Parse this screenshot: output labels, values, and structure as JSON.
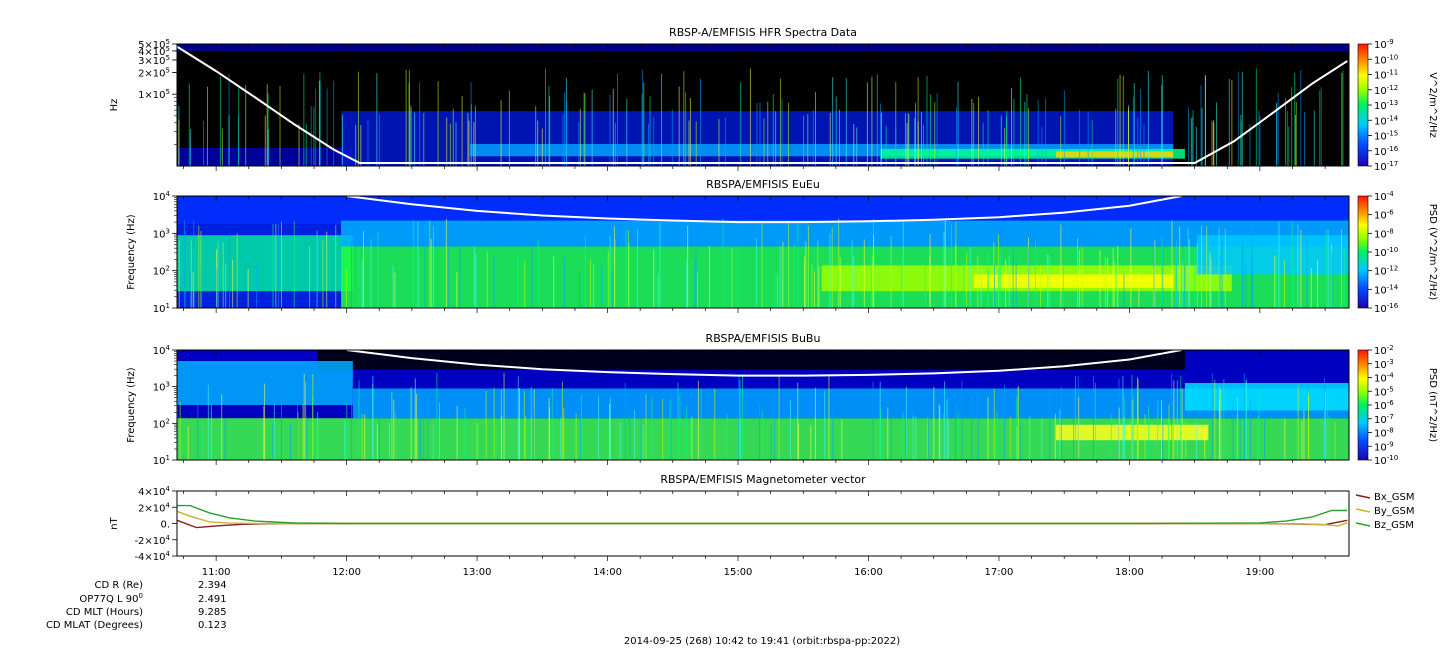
{
  "chart_data": [
    {
      "type": "heatmap",
      "title": "RBSP-A/EMFISIS  HFR Spectra Data",
      "ylabel": "Hz",
      "yscale": "log",
      "ylim": [
        10000,
        500000
      ],
      "y_ticks": [
        {
          "v": 100000,
          "m": "1×10",
          "e": "5"
        },
        {
          "v": 200000,
          "m": "2×10",
          "e": "5"
        },
        {
          "v": 300000,
          "m": "3×10",
          "e": "5"
        },
        {
          "v": 400000,
          "m": "4×10",
          "e": "5"
        },
        {
          "v": 500000,
          "m": "5×10",
          "e": "5"
        }
      ],
      "colorbar": {
        "label": "V^2/m^2/Hz",
        "scale": "log",
        "range": [
          1e-17,
          1e-09
        ],
        "ticks": [
          {
            "m": "10",
            "e": "-9"
          },
          {
            "m": "10",
            "e": "-10"
          },
          {
            "m": "10",
            "e": "-11"
          },
          {
            "m": "10",
            "e": "-12"
          },
          {
            "m": "10",
            "e": "-13"
          },
          {
            "m": "10",
            "e": "-14"
          },
          {
            "m": "10",
            "e": "-15"
          },
          {
            "m": "10",
            "e": "-16"
          },
          {
            "m": "10",
            "e": "-17"
          }
        ]
      },
      "overlay_curve": {
        "color": "#ffffff",
        "x_hours": [
          10.7,
          11.0,
          11.3,
          11.6,
          11.9,
          12.1,
          18.5,
          18.8,
          19.1,
          19.4,
          19.67
        ],
        "y": [
          460000,
          210000,
          90000,
          38000,
          17000,
          11000,
          11000,
          22000,
          55000,
          140000,
          290000
        ]
      }
    },
    {
      "type": "heatmap",
      "title": "RBSPA/EMFISIS  EuEu",
      "ylabel": "Frequency (Hz)",
      "yscale": "log",
      "ylim": [
        10,
        10000
      ],
      "y_ticks": [
        {
          "v": 10,
          "m": "10",
          "e": "1"
        },
        {
          "v": 100,
          "m": "10",
          "e": "2"
        },
        {
          "v": 1000,
          "m": "10",
          "e": "3"
        },
        {
          "v": 10000,
          "m": "10",
          "e": "4"
        }
      ],
      "colorbar": {
        "label": "PSD (V^2/m^2/Hz)",
        "scale": "log",
        "range": [
          1e-16,
          0.0001
        ],
        "ticks": [
          {
            "m": "10",
            "e": "-4"
          },
          {
            "m": "10",
            "e": "-6"
          },
          {
            "m": "10",
            "e": "-8"
          },
          {
            "m": "10",
            "e": "-10"
          },
          {
            "m": "10",
            "e": "-12"
          },
          {
            "m": "10",
            "e": "-14"
          },
          {
            "m": "10",
            "e": "-16"
          }
        ]
      },
      "overlay_curve": {
        "color": "#ffffff",
        "x_hours": [
          12.0,
          12.5,
          13.0,
          13.5,
          14.0,
          14.5,
          15.0,
          15.5,
          16.0,
          16.5,
          17.0,
          17.5,
          18.0,
          18.4
        ],
        "y": [
          10000,
          6000,
          4000,
          3000,
          2500,
          2200,
          2000,
          2000,
          2100,
          2300,
          2700,
          3600,
          5500,
          10000
        ]
      }
    },
    {
      "type": "heatmap",
      "title": "RBSPA/EMFISIS  BuBu",
      "ylabel": "Frequency (Hz)",
      "yscale": "log",
      "ylim": [
        10,
        10000
      ],
      "y_ticks": [
        {
          "v": 10,
          "m": "10",
          "e": "1"
        },
        {
          "v": 100,
          "m": "10",
          "e": "2"
        },
        {
          "v": 1000,
          "m": "10",
          "e": "3"
        },
        {
          "v": 10000,
          "m": "10",
          "e": "4"
        }
      ],
      "colorbar": {
        "label": "PSD (nT^2/Hz)",
        "scale": "log",
        "range": [
          1e-10,
          0.01
        ],
        "ticks": [
          {
            "m": "10",
            "e": "-2"
          },
          {
            "m": "10",
            "e": "-3"
          },
          {
            "m": "10",
            "e": "-4"
          },
          {
            "m": "10",
            "e": "-5"
          },
          {
            "m": "10",
            "e": "-6"
          },
          {
            "m": "10",
            "e": "-7"
          },
          {
            "m": "10",
            "e": "-8"
          },
          {
            "m": "10",
            "e": "-9"
          },
          {
            "m": "10",
            "e": "-10"
          }
        ]
      },
      "overlay_curve": {
        "color": "#ffffff",
        "x_hours": [
          12.0,
          12.5,
          13.0,
          13.5,
          14.0,
          14.5,
          15.0,
          15.5,
          16.0,
          16.5,
          17.0,
          17.5,
          18.0,
          18.4
        ],
        "y": [
          10000,
          6000,
          4000,
          3000,
          2500,
          2200,
          2000,
          2000,
          2100,
          2300,
          2700,
          3600,
          5500,
          10000
        ]
      }
    },
    {
      "type": "line",
      "title": "RBSPA/EMFISIS  Magnetometer vector",
      "ylabel": "nT",
      "ylim": [
        -40000,
        40000
      ],
      "y_ticks": [
        {
          "v": 40000,
          "m": "4×10",
          "e": "4"
        },
        {
          "v": 20000,
          "m": "2×10",
          "e": "4"
        },
        {
          "v": 0,
          "m": "0.",
          "e": ""
        },
        {
          "v": -20000,
          "m": "-2×10",
          "e": "4"
        },
        {
          "v": -40000,
          "m": "-4×10",
          "e": "4"
        }
      ],
      "legend_position": "right",
      "series": [
        {
          "name": "Bx_GSM",
          "color": "#8b1a1a",
          "x": [
            10.7,
            10.85,
            11.0,
            11.2,
            11.5,
            12.0,
            18.0,
            19.0,
            19.3,
            19.5,
            19.67
          ],
          "y": [
            4000,
            -5000,
            -3000,
            -1000,
            0,
            0,
            0,
            0,
            -600,
            -1500,
            4000
          ]
        },
        {
          "name": "By_GSM",
          "color": "#c8b432",
          "x": [
            10.7,
            10.8,
            10.95,
            11.1,
            11.3,
            11.6,
            12.0,
            18.0,
            19.0,
            19.3,
            19.5,
            19.6,
            19.67
          ],
          "y": [
            15000,
            9000,
            2000,
            500,
            0,
            0,
            0,
            0,
            0,
            -400,
            -1500,
            -3000,
            1000
          ]
        },
        {
          "name": "Bz_GSM",
          "color": "#2aa02a",
          "x": [
            10.7,
            10.8,
            10.95,
            11.1,
            11.3,
            11.6,
            12.0,
            18.0,
            19.0,
            19.2,
            19.4,
            19.55,
            19.67
          ],
          "y": [
            22000,
            22000,
            13000,
            7000,
            3000,
            600,
            0,
            0,
            800,
            3000,
            8000,
            16000,
            16000
          ]
        }
      ]
    }
  ],
  "x_axis": {
    "range_hours": [
      10.7,
      19.683
    ],
    "tick_labels": [
      {
        "h": 11,
        "t": "11:00"
      },
      {
        "h": 12,
        "t": "12:00"
      },
      {
        "h": 13,
        "t": "13:00"
      },
      {
        "h": 14,
        "t": "14:00"
      },
      {
        "h": 15,
        "t": "15:00"
      },
      {
        "h": 16,
        "t": "16:00"
      },
      {
        "h": 17,
        "t": "17:00"
      },
      {
        "h": 18,
        "t": "18:00"
      },
      {
        "h": 19,
        "t": "19:00"
      }
    ]
  },
  "ephemeris": {
    "rows": [
      {
        "label": "CD R (Re)",
        "value": "2.394"
      },
      {
        "label": "OP77Q L 90",
        "sup": "0",
        "value": "2.491"
      },
      {
        "label": "CD MLT (Hours)",
        "value": "9.285"
      },
      {
        "label": "CD MLAT (Degrees)",
        "value": "0.123"
      }
    ]
  },
  "footer": "2014-09-25 (268) 10:42 to 19:41 (orbit:rbspa-pp:2022)"
}
